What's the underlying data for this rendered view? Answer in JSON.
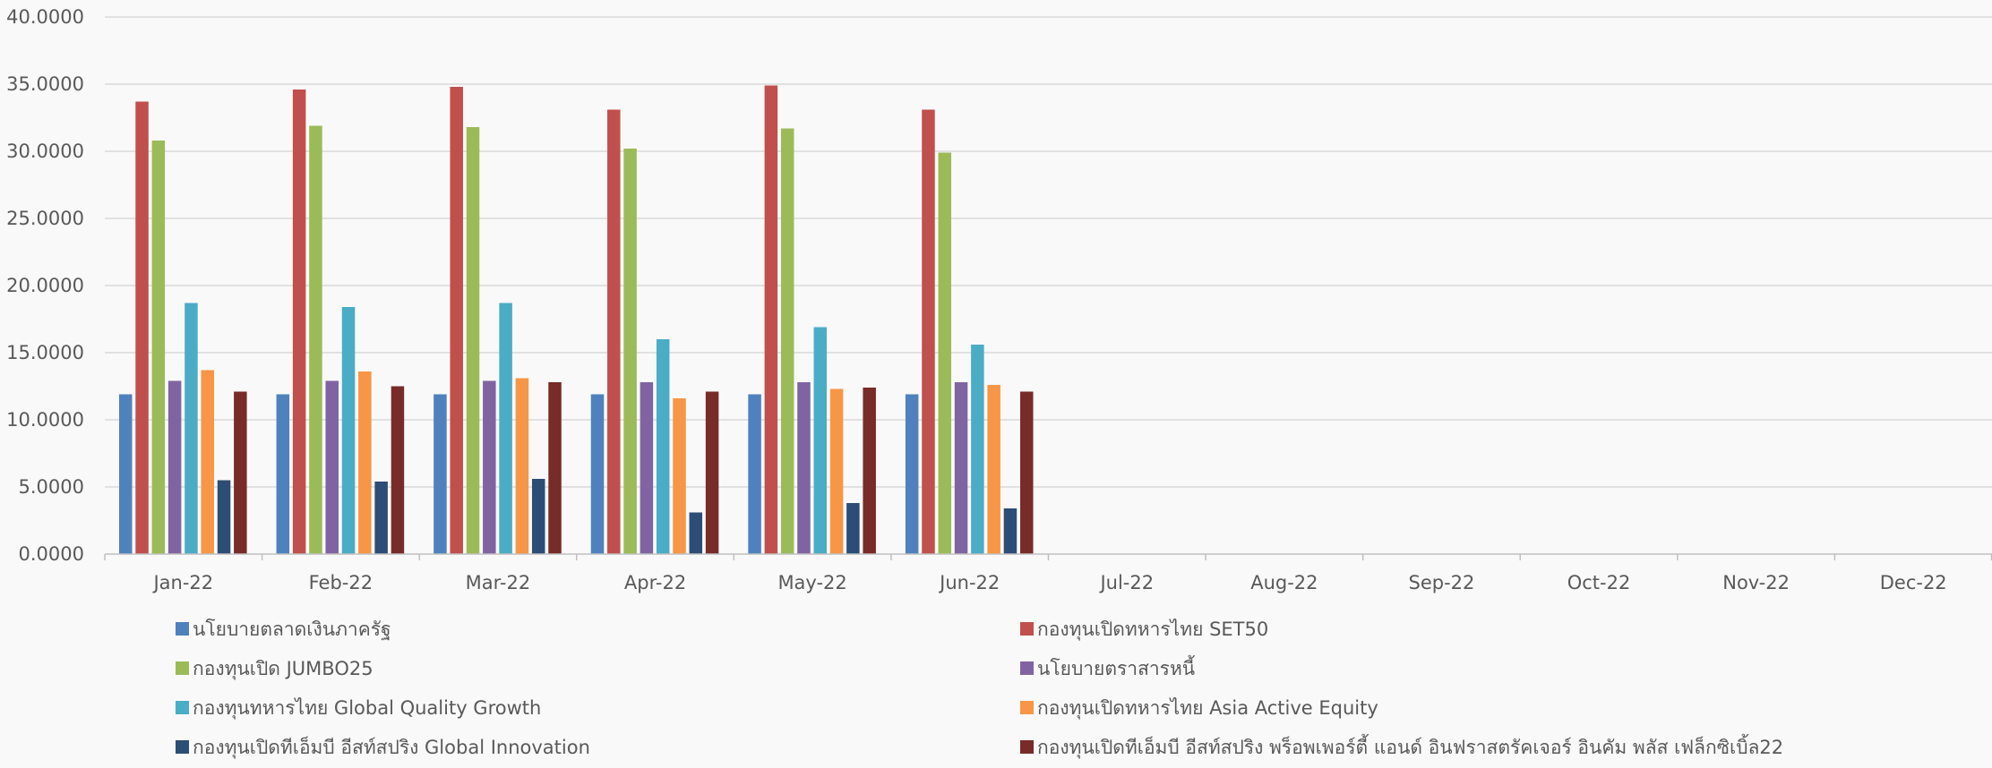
{
  "chart_data": {
    "type": "bar",
    "title": "",
    "xlabel": "",
    "ylabel": "",
    "ylim": [
      0,
      40
    ],
    "ytick_labels": [
      "0.0000",
      "5.0000",
      "10.0000",
      "15.0000",
      "20.0000",
      "25.0000",
      "30.0000",
      "35.0000",
      "40.0000"
    ],
    "categories": [
      "Jan-22",
      "Feb-22",
      "Mar-22",
      "Apr-22",
      "May-22",
      "Jun-22",
      "Jul-22",
      "Aug-22",
      "Sep-22",
      "Oct-22",
      "Nov-22",
      "Dec-22"
    ],
    "grid": true,
    "legend_position": "bottom",
    "series": [
      {
        "name": "นโยบายตลาดเงินภาครัฐ",
        "color": "#4f81bd",
        "values": [
          11.9,
          11.9,
          11.9,
          11.9,
          11.9,
          11.9,
          null,
          null,
          null,
          null,
          null,
          null
        ]
      },
      {
        "name": "กองทุนเปิดทหารไทย SET50",
        "color": "#c0504d",
        "values": [
          33.7,
          34.6,
          34.8,
          33.1,
          34.9,
          33.1,
          null,
          null,
          null,
          null,
          null,
          null
        ]
      },
      {
        "name": "กองทุนเปิด JUMBO25",
        "color": "#9bbb59",
        "values": [
          30.8,
          31.9,
          31.8,
          30.2,
          31.7,
          29.9,
          null,
          null,
          null,
          null,
          null,
          null
        ]
      },
      {
        "name": "นโยบายตราสารหนี้",
        "color": "#8064a2",
        "values": [
          12.9,
          12.9,
          12.9,
          12.8,
          12.8,
          12.8,
          null,
          null,
          null,
          null,
          null,
          null
        ]
      },
      {
        "name": "กองทุนทหารไทย Global Quality Growth",
        "color": "#4bacc6",
        "values": [
          18.7,
          18.4,
          18.7,
          16.0,
          16.9,
          15.6,
          null,
          null,
          null,
          null,
          null,
          null
        ]
      },
      {
        "name": "กองทุนเปิดทหารไทย Asia Active Equity",
        "color": "#f79646",
        "values": [
          13.7,
          13.6,
          13.1,
          11.6,
          12.3,
          12.6,
          null,
          null,
          null,
          null,
          null,
          null
        ]
      },
      {
        "name": "กองทุนเปิดทีเอ็มบี อีสท์สปริง Global Innovation",
        "color": "#2c4d75",
        "values": [
          5.5,
          5.4,
          5.6,
          3.1,
          3.8,
          3.4,
          null,
          null,
          null,
          null,
          null,
          null
        ]
      },
      {
        "name": "กองทุนเปิดทีเอ็มบี อีสท์สปริง พร็อพเพอร์ตี้ แอนด์ อินฟราสตรัคเจอร์ อินคัม พลัส เฟล็กซิเบิ้ล22",
        "color": "#772c2a",
        "values": [
          12.1,
          12.5,
          12.8,
          12.1,
          12.4,
          12.1,
          null,
          null,
          null,
          null,
          null,
          null
        ]
      }
    ]
  },
  "colors": {
    "grid": "#d9d9d9",
    "axis": "#bfbfbf",
    "text": "#595959",
    "background": "#f9f9f9"
  }
}
